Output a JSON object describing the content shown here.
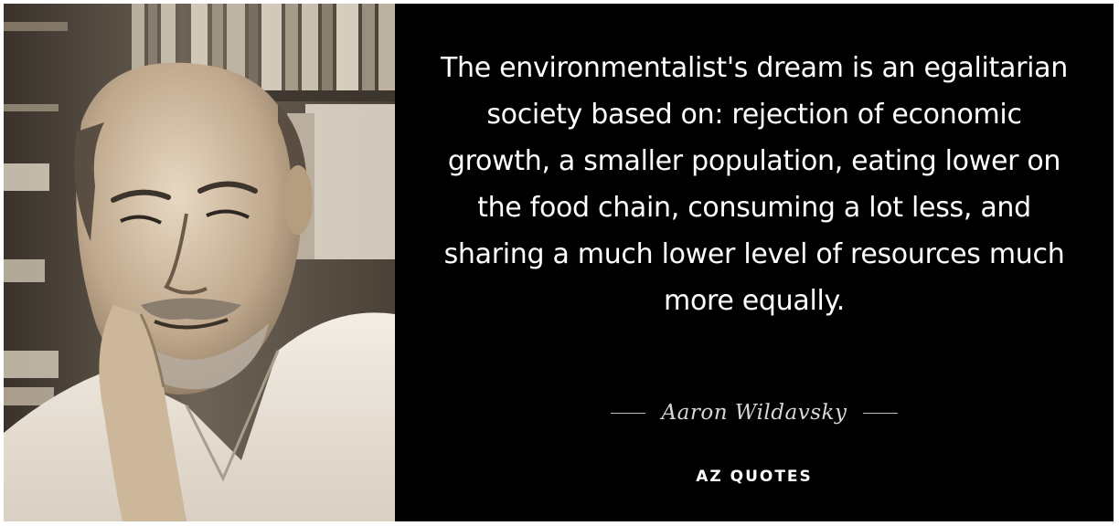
{
  "quote": {
    "text": "The environmentalist's dream is an egalitarian society based on: rejection of economic growth, a smaller population, eating lower on the food chain, consuming a lot less, and sharing a much lower level of resources much more equally.",
    "author": "Aaron Wildavsky"
  },
  "brand": {
    "name": "AZ QUOTES"
  },
  "colors": {
    "panel": "#000000",
    "text": "#ffffff",
    "author": "#d7d7d7",
    "photo_tone": "sepia"
  },
  "photo": {
    "subject": "portrait-photo"
  }
}
